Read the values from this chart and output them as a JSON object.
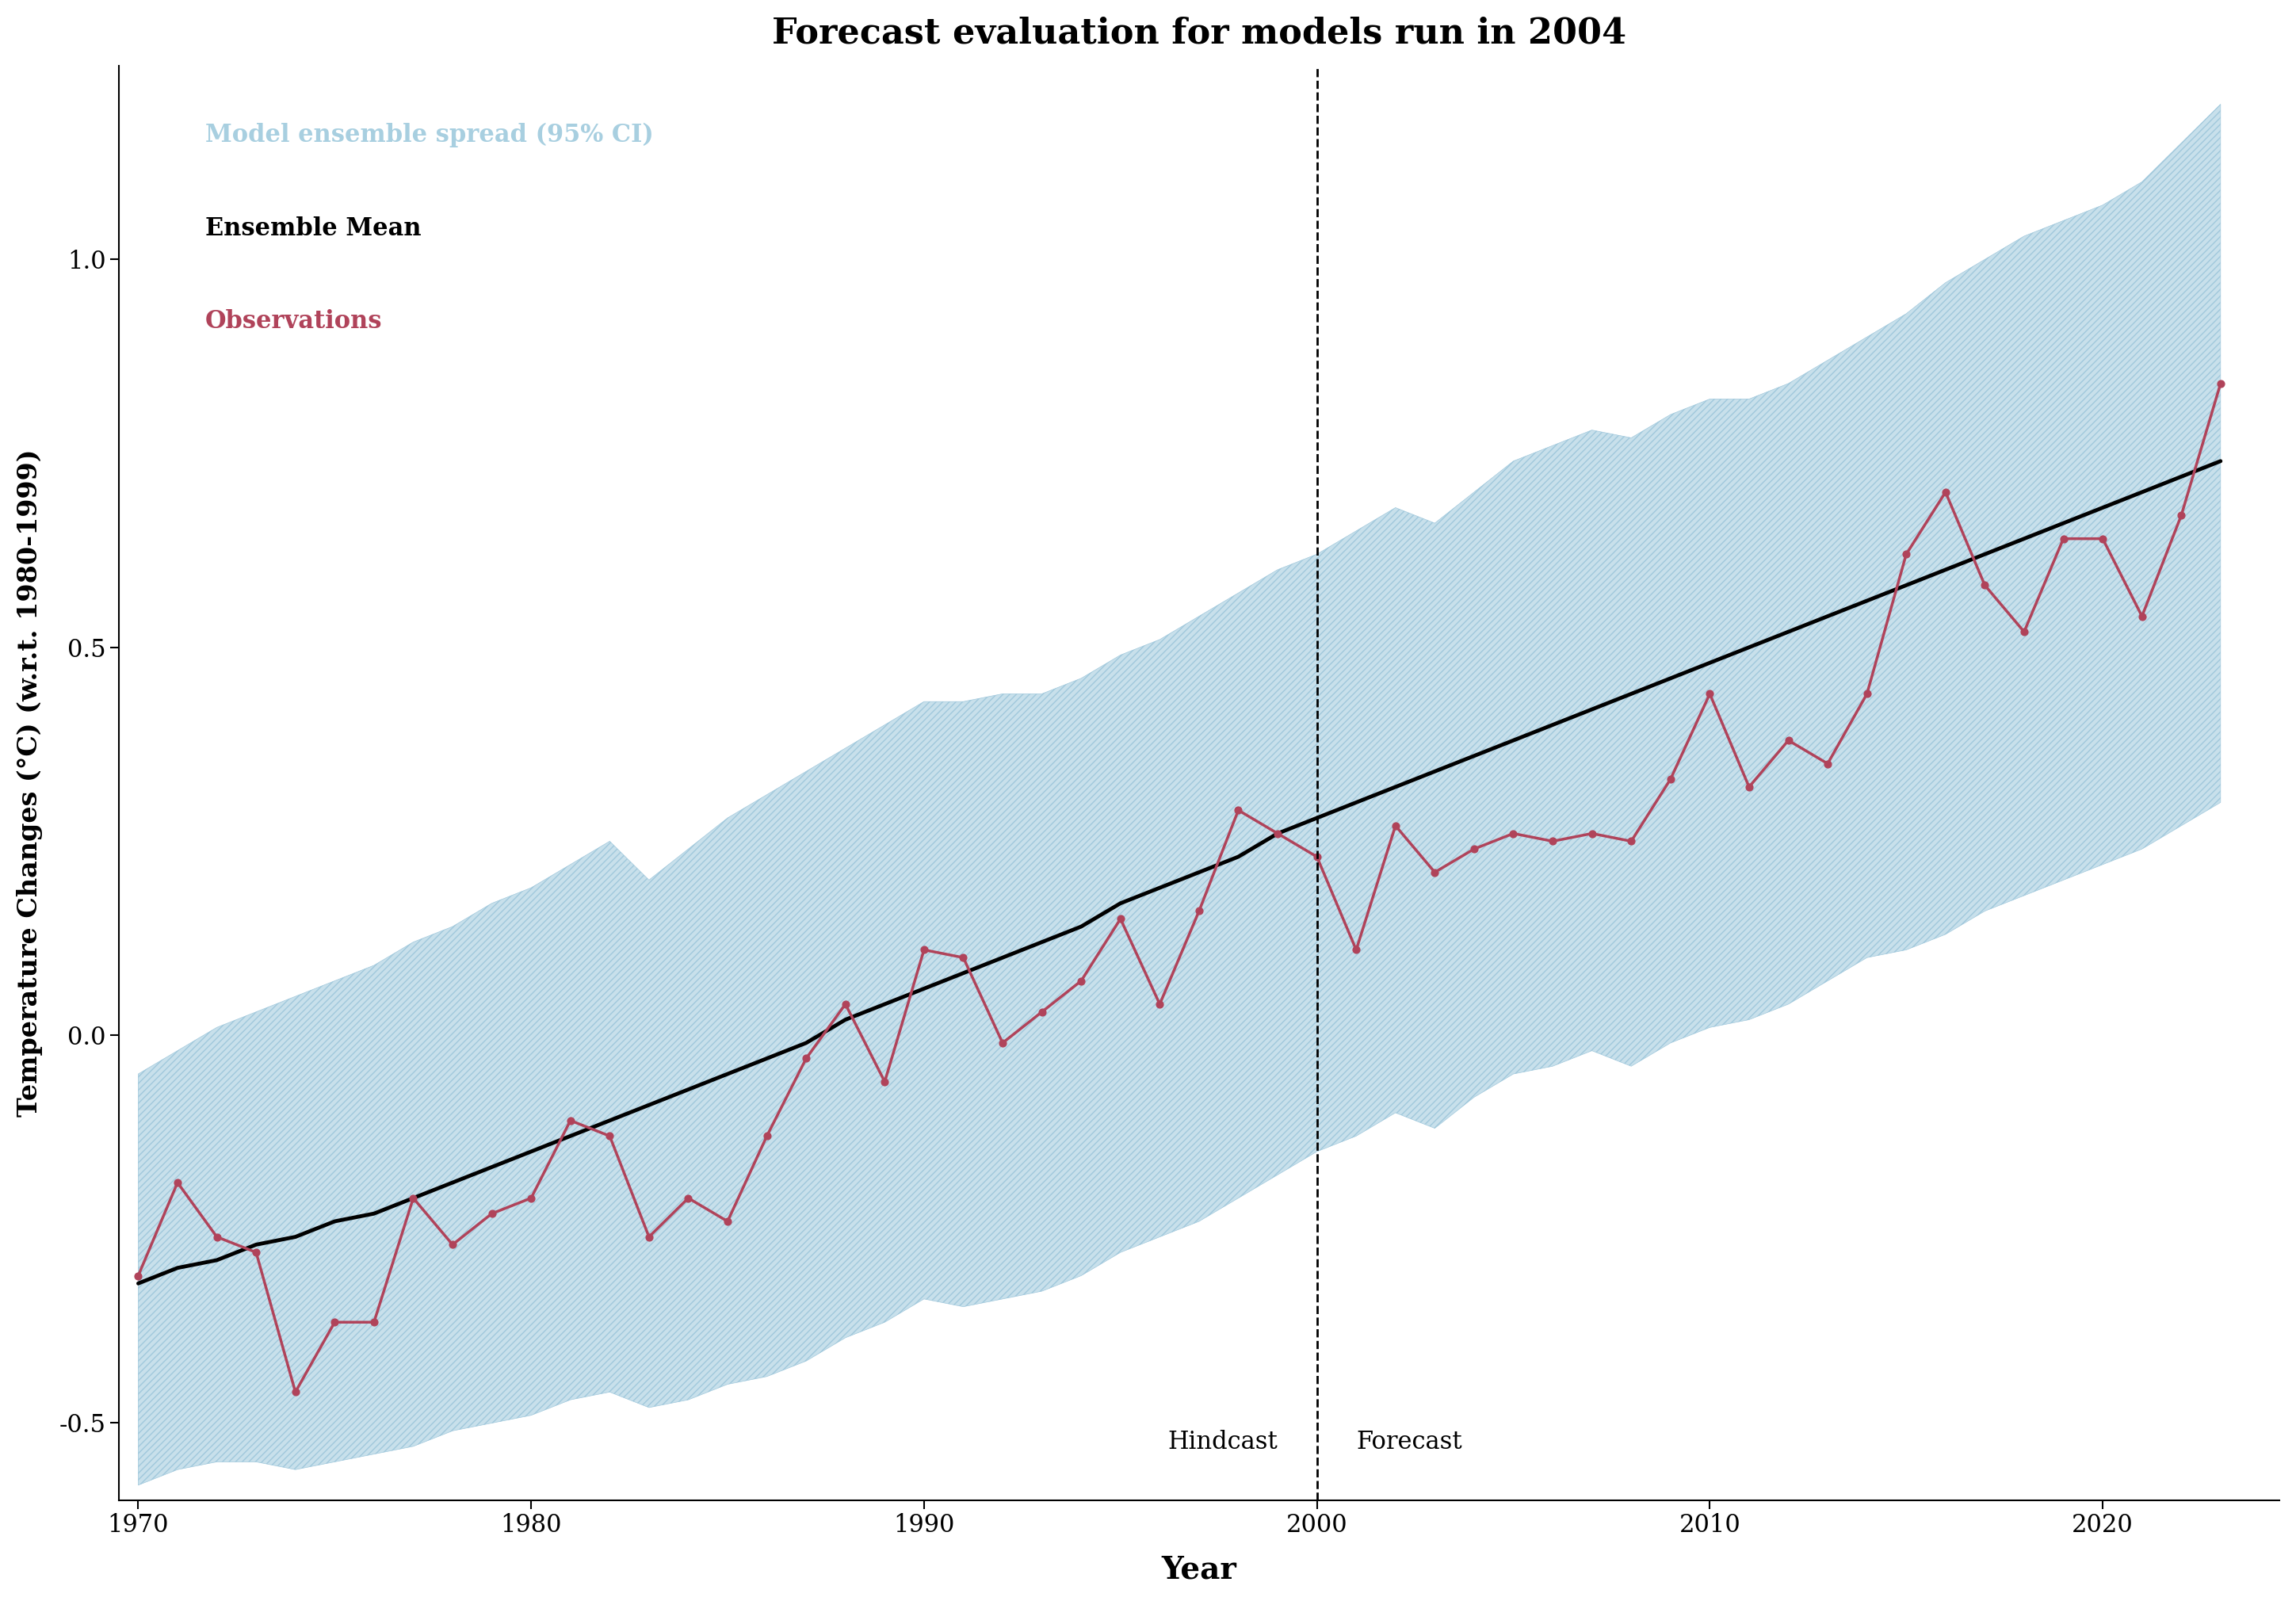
{
  "title": "Forecast evaluation for models run in 2004",
  "xlabel": "Year",
  "ylabel": "Temperature Changes (°C) (w.r.t. 1980-1999)",
  "ylim": [
    -0.6,
    1.25
  ],
  "xlim": [
    1969.5,
    2024.5
  ],
  "forecast_year": 2000,
  "hindcast_label": "Hindcast",
  "forecast_label": "Forecast",
  "ensemble_fill_color": "#c8e0eb",
  "ensemble_edge_color": "#a0c8dc",
  "mean_color": "#000000",
  "obs_color": "#b0435a",
  "legend_ensemble_color": "#a8cfe0",
  "legend_ensemble_label": "Model ensemble spread (95% CI)",
  "legend_mean_label": "Ensemble Mean",
  "legend_obs_label": "Observations",
  "years": [
    1970,
    1971,
    1972,
    1973,
    1974,
    1975,
    1976,
    1977,
    1978,
    1979,
    1980,
    1981,
    1982,
    1983,
    1984,
    1985,
    1986,
    1987,
    1988,
    1989,
    1990,
    1991,
    1992,
    1993,
    1994,
    1995,
    1996,
    1997,
    1998,
    1999,
    2000,
    2001,
    2002,
    2003,
    2004,
    2005,
    2006,
    2007,
    2008,
    2009,
    2010,
    2011,
    2012,
    2013,
    2014,
    2015,
    2016,
    2017,
    2018,
    2019,
    2020,
    2021,
    2022,
    2023
  ],
  "ensemble_mean": [
    -0.32,
    -0.3,
    -0.29,
    -0.27,
    -0.26,
    -0.24,
    -0.23,
    -0.21,
    -0.19,
    -0.17,
    -0.15,
    -0.13,
    -0.11,
    -0.09,
    -0.07,
    -0.05,
    -0.03,
    -0.01,
    0.02,
    0.04,
    0.06,
    0.08,
    0.1,
    0.12,
    0.14,
    0.17,
    0.19,
    0.21,
    0.23,
    0.26,
    0.28,
    0.3,
    0.32,
    0.34,
    0.36,
    0.38,
    0.4,
    0.42,
    0.44,
    0.46,
    0.48,
    0.5,
    0.52,
    0.54,
    0.56,
    0.58,
    0.6,
    0.62,
    0.64,
    0.66,
    0.68,
    0.7,
    0.72,
    0.74
  ],
  "ensemble_upper": [
    -0.05,
    -0.02,
    0.01,
    0.03,
    0.05,
    0.07,
    0.09,
    0.12,
    0.14,
    0.17,
    0.19,
    0.22,
    0.25,
    0.2,
    0.24,
    0.28,
    0.31,
    0.34,
    0.37,
    0.4,
    0.43,
    0.43,
    0.44,
    0.44,
    0.46,
    0.49,
    0.51,
    0.54,
    0.57,
    0.6,
    0.62,
    0.65,
    0.68,
    0.66,
    0.7,
    0.74,
    0.76,
    0.78,
    0.77,
    0.8,
    0.82,
    0.82,
    0.84,
    0.87,
    0.9,
    0.93,
    0.97,
    1.0,
    1.03,
    1.05,
    1.07,
    1.1,
    1.15,
    1.2
  ],
  "ensemble_lower": [
    -0.58,
    -0.56,
    -0.55,
    -0.55,
    -0.56,
    -0.55,
    -0.54,
    -0.53,
    -0.51,
    -0.5,
    -0.49,
    -0.47,
    -0.46,
    -0.48,
    -0.47,
    -0.45,
    -0.44,
    -0.42,
    -0.39,
    -0.37,
    -0.34,
    -0.35,
    -0.34,
    -0.33,
    -0.31,
    -0.28,
    -0.26,
    -0.24,
    -0.21,
    -0.18,
    -0.15,
    -0.13,
    -0.1,
    -0.12,
    -0.08,
    -0.05,
    -0.04,
    -0.02,
    -0.04,
    -0.01,
    0.01,
    0.02,
    0.04,
    0.07,
    0.1,
    0.11,
    0.13,
    0.16,
    0.18,
    0.2,
    0.22,
    0.24,
    0.27,
    0.3
  ],
  "observations": [
    -0.31,
    -0.19,
    -0.26,
    -0.28,
    -0.46,
    -0.37,
    -0.37,
    -0.21,
    -0.27,
    -0.23,
    -0.21,
    -0.11,
    -0.13,
    -0.26,
    -0.21,
    -0.24,
    -0.13,
    -0.03,
    0.04,
    -0.06,
    0.11,
    0.1,
    -0.01,
    0.03,
    0.07,
    0.15,
    0.04,
    0.16,
    0.29,
    0.26,
    0.23,
    0.11,
    0.27,
    0.21,
    0.24,
    0.26,
    0.25,
    0.26,
    0.25,
    0.33,
    0.44,
    0.32,
    0.38,
    0.35,
    0.44,
    0.62,
    0.7,
    0.58,
    0.52,
    0.64,
    0.64,
    0.54,
    0.67,
    0.84
  ]
}
